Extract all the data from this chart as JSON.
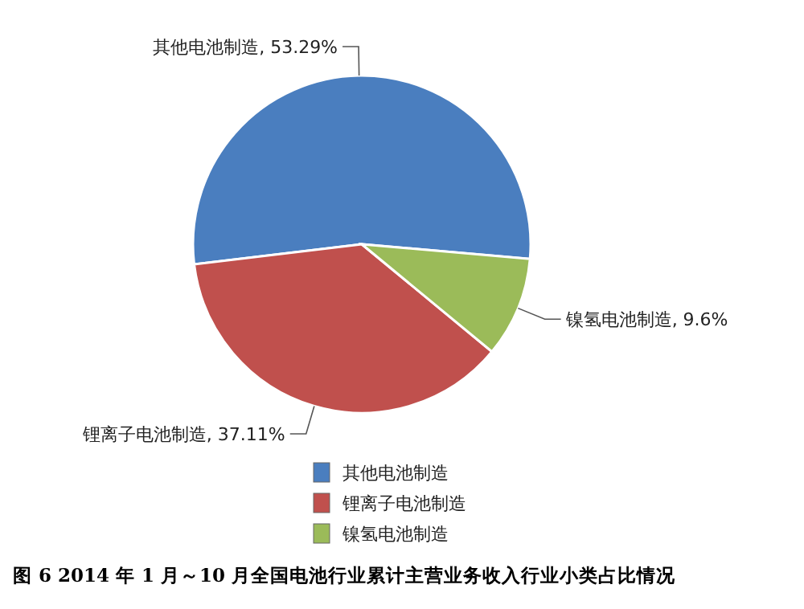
{
  "chart_data": {
    "type": "pie",
    "title": "图 6 2014 年 1 月～10 月全国电池行业累计主营业务收入行业小类占比情况",
    "categories": [
      "其他电池制造",
      "锂离子电池制造",
      "镍氢电池制造"
    ],
    "values": [
      53.29,
      37.11,
      9.6
    ],
    "value_labels": [
      ", 53.29%",
      ", 37.11%",
      ", 9.6%"
    ],
    "colors": [
      "#4a7ebf",
      "#c0504d",
      "#9bbb59"
    ],
    "legend": "bottom"
  }
}
